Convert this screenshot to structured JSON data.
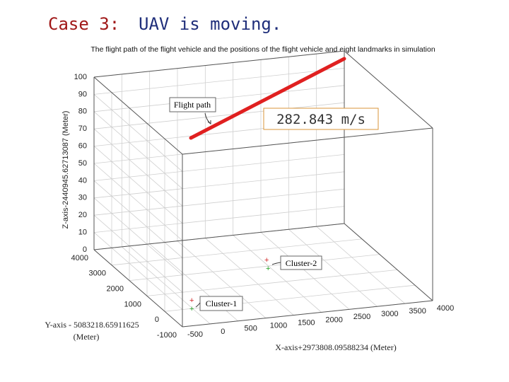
{
  "header": {
    "case": "Case 3:",
    "title": "UAV is moving."
  },
  "plot": {
    "title": "The flight path of the flight vehicle and the positions of the flight vehicle and eight landmarks in simulation",
    "x_axis": {
      "label": "X-axis+2973808.09588234 (Meter)",
      "ticks": [
        -500,
        0,
        500,
        1000,
        1500,
        2000,
        2500,
        3000,
        3500,
        4000
      ]
    },
    "y_axis": {
      "label": [
        "Y-axis - 5083218.65911625",
        "(Meter)"
      ],
      "ticks": [
        -1000,
        0,
        1000,
        2000,
        3000,
        4000
      ]
    },
    "z_axis": {
      "label": "Z-axis-2440945.62713087 (Meter)",
      "ticks": [
        0,
        10,
        20,
        30,
        40,
        50,
        60,
        70,
        80,
        90,
        100
      ]
    },
    "annotations": {
      "flight_path": "Flight path",
      "speed": "282.843 m/s",
      "cluster_2": "Cluster-2",
      "cluster_1": "Cluster-1"
    }
  }
}
